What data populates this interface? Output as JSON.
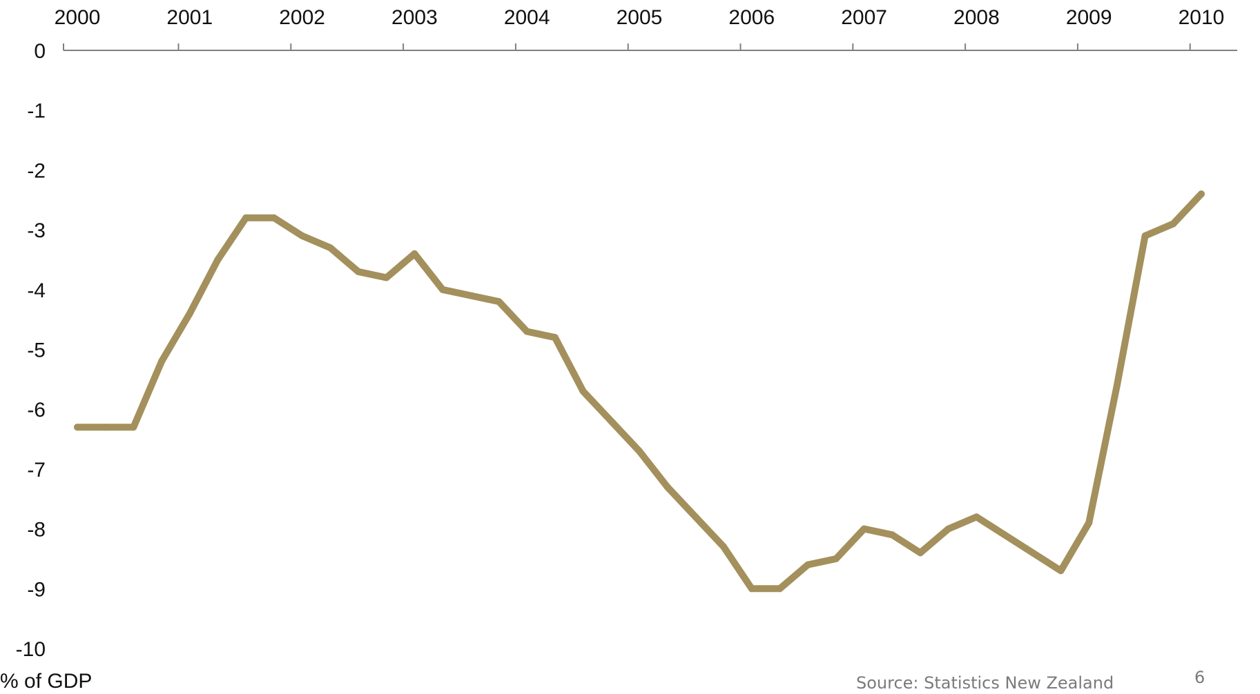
{
  "chart_data": {
    "type": "line",
    "title": "",
    "xlabel": "",
    "ylabel": "% of GDP",
    "x_ticks": [
      "2000",
      "2001",
      "2002",
      "2003",
      "2004",
      "2005",
      "2006",
      "2007",
      "2008",
      "2009",
      "2010"
    ],
    "y_ticks": [
      "0",
      "-1",
      "-2",
      "-3",
      "-4",
      "-5",
      "-6",
      "-7",
      "-8",
      "-9",
      "-10"
    ],
    "xlim": [
      2000,
      2010.2
    ],
    "ylim": [
      -10,
      0
    ],
    "x_axis_position": "top",
    "grid": false,
    "legend": "none",
    "series": [
      {
        "color": "#a3905c",
        "x": [
          2000.0,
          2000.25,
          2000.5,
          2000.75,
          2001.0,
          2001.25,
          2001.5,
          2001.75,
          2002.0,
          2002.25,
          2002.5,
          2002.75,
          2003.0,
          2003.25,
          2003.5,
          2003.75,
          2004.0,
          2004.25,
          2004.5,
          2004.75,
          2005.0,
          2005.25,
          2005.5,
          2005.75,
          2006.0,
          2006.25,
          2006.5,
          2006.75,
          2007.0,
          2007.25,
          2007.5,
          2007.75,
          2008.0,
          2008.25,
          2008.5,
          2008.75,
          2009.0,
          2009.25,
          2009.5,
          2009.75,
          2010.0
        ],
        "values": [
          -6.3,
          -6.3,
          -6.3,
          -5.2,
          -4.4,
          -3.5,
          -2.8,
          -2.8,
          -3.1,
          -3.3,
          -3.7,
          -3.8,
          -3.4,
          -4.0,
          -4.1,
          -4.2,
          -4.7,
          -4.8,
          -5.7,
          -6.2,
          -6.7,
          -7.3,
          -7.8,
          -8.3,
          -9.0,
          -9.0,
          -8.6,
          -8.5,
          -8.0,
          -8.1,
          -8.4,
          -8.0,
          -7.8,
          -8.1,
          -8.4,
          -8.7,
          -7.9,
          -5.6,
          -3.1,
          -2.9,
          -2.4
        ]
      }
    ]
  },
  "unit_label": "% of GDP",
  "source_label": "Source: Statistics New Zealand",
  "page_number": "6"
}
